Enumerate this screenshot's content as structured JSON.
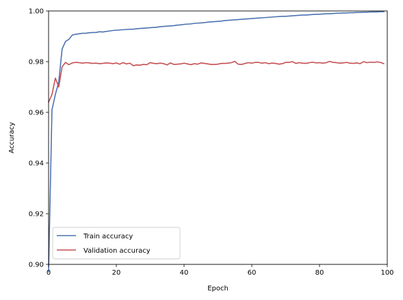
{
  "chart_data": {
    "type": "line",
    "xlabel": "Epoch",
    "ylabel": "Accuracy",
    "xlim": [
      0,
      100
    ],
    "ylim": [
      0.9,
      1.0
    ],
    "xticks": [
      0,
      20,
      40,
      60,
      80,
      100
    ],
    "yticks": [
      0.9,
      0.92,
      0.94,
      0.96,
      0.98,
      1.0
    ],
    "xtick_labels": [
      "0",
      "20",
      "40",
      "60",
      "80",
      "100"
    ],
    "ytick_labels": [
      "0.90",
      "0.92",
      "0.94",
      "0.96",
      "0.98",
      "1.00"
    ],
    "grid": false,
    "legend_position": "lower-left",
    "series": [
      {
        "name": "Train accuracy",
        "color": "#4c72b0",
        "x": [
          0,
          1,
          2,
          3,
          4,
          5,
          6,
          7,
          8,
          9,
          10,
          11,
          12,
          13,
          14,
          15,
          16,
          17,
          18,
          19,
          20,
          21,
          22,
          23,
          24,
          25,
          26,
          27,
          28,
          29,
          30,
          31,
          32,
          33,
          34,
          35,
          36,
          37,
          38,
          39,
          40,
          41,
          42,
          43,
          44,
          45,
          46,
          47,
          48,
          49,
          50,
          51,
          52,
          53,
          54,
          55,
          56,
          57,
          58,
          59,
          60,
          61,
          62,
          63,
          64,
          65,
          66,
          67,
          68,
          69,
          70,
          71,
          72,
          73,
          74,
          75,
          76,
          77,
          78,
          79,
          80,
          81,
          82,
          83,
          84,
          85,
          86,
          87,
          88,
          89,
          90,
          91,
          92,
          93,
          94,
          95,
          96,
          97,
          98,
          99
        ],
        "y": [
          0.897,
          0.961,
          0.967,
          0.972,
          0.985,
          0.988,
          0.9888,
          0.9905,
          0.9908,
          0.991,
          0.9912,
          0.9912,
          0.9914,
          0.9915,
          0.9915,
          0.9918,
          0.9917,
          0.9919,
          0.9921,
          0.9923,
          0.9924,
          0.9925,
          0.9926,
          0.9927,
          0.9928,
          0.9928,
          0.993,
          0.9931,
          0.9932,
          0.9933,
          0.9934,
          0.9935,
          0.9936,
          0.9938,
          0.9939,
          0.994,
          0.9941,
          0.9942,
          0.9944,
          0.9945,
          0.9947,
          0.9948,
          0.9949,
          0.9951,
          0.9952,
          0.9953,
          0.9954,
          0.9956,
          0.9957,
          0.9958,
          0.9959,
          0.996,
          0.9962,
          0.9963,
          0.9964,
          0.9965,
          0.9966,
          0.9967,
          0.9968,
          0.9969,
          0.997,
          0.9971,
          0.9972,
          0.9973,
          0.9974,
          0.9975,
          0.9976,
          0.9977,
          0.9978,
          0.9979,
          0.9979,
          0.998,
          0.9981,
          0.9982,
          0.9983,
          0.9984,
          0.9984,
          0.9985,
          0.9986,
          0.9987,
          0.9987,
          0.9988,
          0.9989,
          0.9989,
          0.999,
          0.9991,
          0.9991,
          0.9992,
          0.9992,
          0.9993,
          0.9993,
          0.9994,
          0.9994,
          0.9995,
          0.9995,
          0.9996,
          0.9996,
          0.9996,
          0.9997,
          0.9997
        ]
      },
      {
        "name": "Validation accuracy",
        "color": "#c44e52",
        "x": [
          0,
          1,
          2,
          3,
          4,
          5,
          6,
          7,
          8,
          9,
          10,
          11,
          12,
          13,
          14,
          15,
          16,
          17,
          18,
          19,
          20,
          21,
          22,
          23,
          24,
          25,
          26,
          27,
          28,
          29,
          30,
          31,
          32,
          33,
          34,
          35,
          36,
          37,
          38,
          39,
          40,
          41,
          42,
          43,
          44,
          45,
          46,
          47,
          48,
          49,
          50,
          51,
          52,
          53,
          54,
          55,
          56,
          57,
          58,
          59,
          60,
          61,
          62,
          63,
          64,
          65,
          66,
          67,
          68,
          69,
          70,
          71,
          72,
          73,
          74,
          75,
          76,
          77,
          78,
          79,
          80,
          81,
          82,
          83,
          84,
          85,
          86,
          87,
          88,
          89,
          90,
          91,
          92,
          93,
          94,
          95,
          96,
          97,
          98,
          99
        ],
        "y": [
          0.964,
          0.967,
          0.9735,
          0.97,
          0.978,
          0.9797,
          0.9788,
          0.9795,
          0.9797,
          0.9796,
          0.9794,
          0.9796,
          0.9795,
          0.9793,
          0.9794,
          0.9792,
          0.9793,
          0.9795,
          0.9794,
          0.9792,
          0.9795,
          0.979,
          0.9796,
          0.9791,
          0.9794,
          0.9784,
          0.9787,
          0.9786,
          0.9789,
          0.9788,
          0.9796,
          0.9793,
          0.9792,
          0.9794,
          0.9792,
          0.9787,
          0.9795,
          0.9789,
          0.979,
          0.9791,
          0.9794,
          0.9791,
          0.9788,
          0.9792,
          0.979,
          0.9795,
          0.9793,
          0.9791,
          0.9789,
          0.9789,
          0.979,
          0.9793,
          0.9793,
          0.9794,
          0.9796,
          0.9801,
          0.979,
          0.9789,
          0.9793,
          0.9796,
          0.9794,
          0.9797,
          0.9797,
          0.9794,
          0.9796,
          0.9792,
          0.9794,
          0.9793,
          0.979,
          0.9792,
          0.9797,
          0.9797,
          0.98,
          0.9793,
          0.9796,
          0.9794,
          0.9793,
          0.9796,
          0.9798,
          0.9795,
          0.9796,
          0.9794,
          0.9796,
          0.9801,
          0.9797,
          0.9796,
          0.9794,
          0.9795,
          0.9797,
          0.9794,
          0.9793,
          0.9795,
          0.9792,
          0.98,
          0.9796,
          0.9798,
          0.9797,
          0.9799,
          0.9797,
          0.9792
        ]
      }
    ]
  }
}
